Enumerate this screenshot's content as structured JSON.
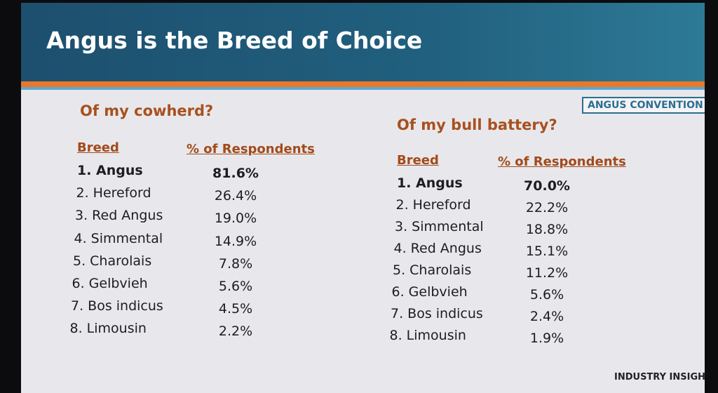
{
  "header": {
    "title": "Angus is the Breed of Choice",
    "logo": "ANGUS CONVENTION"
  },
  "tables": [
    {
      "subtitle": "Of my cowherd?",
      "columns": [
        "Breed",
        "% of Respondents"
      ],
      "rows": [
        [
          "1. Angus",
          "81.6%"
        ],
        [
          "2. Hereford",
          "26.4%"
        ],
        [
          "3. Red Angus",
          "19.0%"
        ],
        [
          "4. Simmental",
          "14.9%"
        ],
        [
          "5. Charolais",
          "7.8%"
        ],
        [
          "6. Gelbvieh",
          "5.6%"
        ],
        [
          "7. Bos indicus",
          "4.5%"
        ],
        [
          "8. Limousin",
          "2.2%"
        ]
      ]
    },
    {
      "subtitle": "Of my bull battery?",
      "columns": [
        "Breed",
        "% of Respondents"
      ],
      "rows": [
        [
          "1. Angus",
          "70.0%"
        ],
        [
          "2. Hereford",
          "22.2%"
        ],
        [
          "3. Simmental",
          "18.8%"
        ],
        [
          "4. Red Angus",
          "15.1%"
        ],
        [
          "5. Charolais",
          "11.2%"
        ],
        [
          "6. Gelbvieh",
          "5.6%"
        ],
        [
          "7. Bos indicus",
          "2.4%"
        ],
        [
          "8. Limousin",
          "1.9%"
        ]
      ]
    }
  ],
  "footer": {
    "brand": "INDUSTRY INSIGHTS"
  }
}
